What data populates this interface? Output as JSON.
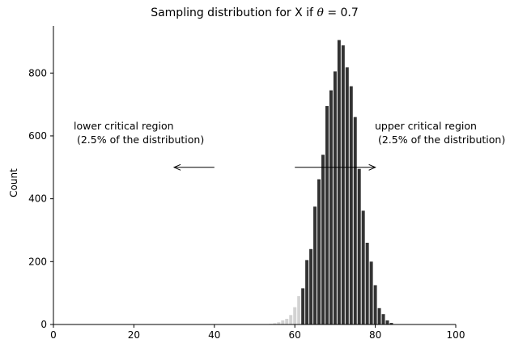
{
  "chart_data": {
    "type": "bar",
    "title": "Sampling distribution for X if θ = 0.7",
    "title_parts": {
      "prefix": "Sampling distribution for X if ",
      "theta": "θ",
      "suffix": " = 0.7"
    },
    "xlabel": "",
    "ylabel": "Count",
    "xlim": [
      0,
      100
    ],
    "ylim": [
      0,
      950
    ],
    "xticks": [
      0,
      20,
      40,
      60,
      80,
      100
    ],
    "yticks": [
      0,
      200,
      400,
      600,
      800
    ],
    "grid": false,
    "colors": {
      "main": "#333333",
      "tail": "#d3d3d3"
    },
    "x": [
      52,
      53,
      54,
      55,
      56,
      57,
      58,
      59,
      60,
      61,
      62,
      63,
      64,
      65,
      66,
      67,
      68,
      69,
      70,
      71,
      72,
      73,
      74,
      75,
      76,
      77,
      78,
      79,
      80,
      81,
      82,
      83,
      84,
      85
    ],
    "values": [
      1,
      1,
      2,
      4,
      7,
      13,
      18,
      30,
      55,
      90,
      115,
      205,
      240,
      375,
      462,
      540,
      695,
      745,
      805,
      905,
      888,
      818,
      758,
      660,
      495,
      362,
      260,
      200,
      125,
      52,
      33,
      13,
      5,
      1
    ],
    "region": [
      "lower",
      "lower",
      "lower",
      "lower",
      "lower",
      "lower",
      "lower",
      "lower",
      "lower",
      "lower",
      "main",
      "main",
      "main",
      "main",
      "main",
      "main",
      "main",
      "main",
      "main",
      "main",
      "main",
      "main",
      "main",
      "main",
      "main",
      "main",
      "main",
      "main",
      "main",
      "main",
      "main",
      "main",
      "main",
      "main"
    ],
    "annotations": [
      {
        "name": "lower",
        "text": "lower critical region\n (2.5% of the distribution)",
        "arrow_from": [
          40,
          500
        ],
        "arrow_to": [
          30,
          500
        ]
      },
      {
        "name": "upper",
        "text": "upper critical region\n (2.5% of the distribution)",
        "arrow_from": [
          60,
          500
        ],
        "arrow_to": [
          80,
          500
        ]
      }
    ]
  }
}
